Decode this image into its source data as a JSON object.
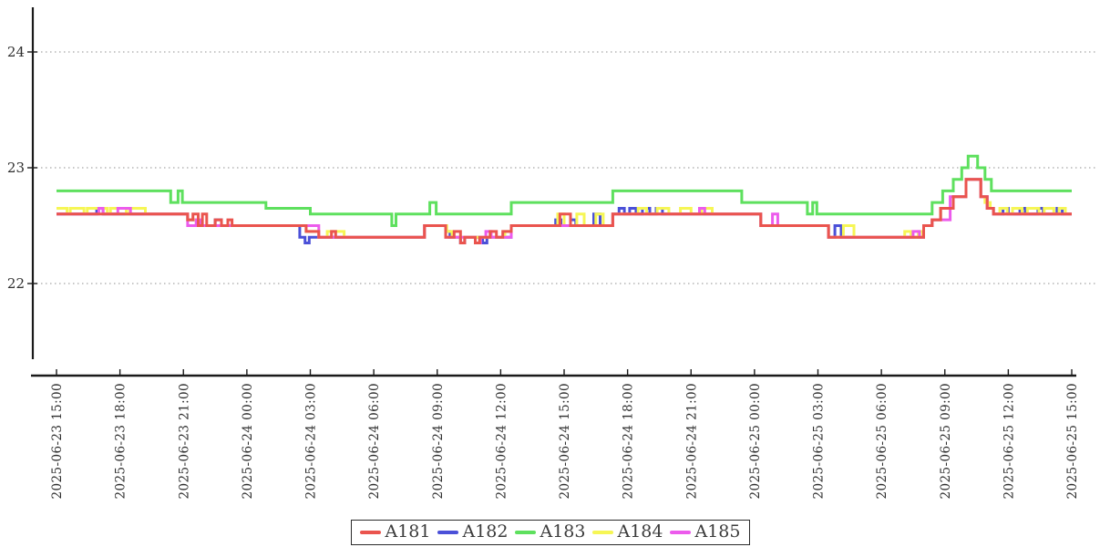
{
  "chart_data": {
    "type": "line",
    "title": "",
    "line_style": "step-after",
    "grid": "horizontal dashed at y ticks",
    "legend_position": "bottom-center",
    "x_axis": {
      "type": "datetime",
      "start": "2025-06-23 15:00",
      "end": "2025-06-25 15:00",
      "tick_interval_hours": 3,
      "tick_labels": [
        "2025-06-23 15:00",
        "2025-06-23 18:00",
        "2025-06-23 21:00",
        "2025-06-24 00:00",
        "2025-06-24 03:00",
        "2025-06-24 06:00",
        "2025-06-24 09:00",
        "2025-06-24 12:00",
        "2025-06-24 15:00",
        "2025-06-24 18:00",
        "2025-06-24 21:00",
        "2025-06-25 00:00",
        "2025-06-25 03:00",
        "2025-06-25 06:00",
        "2025-06-25 09:00",
        "2025-06-25 12:00",
        "2025-06-25 15:00"
      ]
    },
    "y_axis": {
      "ticks": [
        24,
        23,
        22
      ],
      "visible_range": [
        21.3,
        24.4
      ]
    },
    "colors": {
      "axis": "#1a1a1a",
      "grid": "#8f8f8f",
      "tick_text": "#2e2e2e"
    },
    "series_note": "steps = [hours_since_2025-06-23_15:00, value]; value holds until next step",
    "series": [
      {
        "name": "A181",
        "color": "#ea544e",
        "steps": [
          [
            0,
            22.6
          ],
          [
            6.2,
            22.55
          ],
          [
            6.45,
            22.6
          ],
          [
            6.7,
            22.5
          ],
          [
            6.9,
            22.6
          ],
          [
            7.1,
            22.5
          ],
          [
            7.5,
            22.55
          ],
          [
            7.8,
            22.5
          ],
          [
            8.1,
            22.55
          ],
          [
            8.3,
            22.5
          ],
          [
            11.8,
            22.45
          ],
          [
            12.4,
            22.4
          ],
          [
            13.0,
            22.45
          ],
          [
            13.2,
            22.4
          ],
          [
            17.4,
            22.5
          ],
          [
            18.4,
            22.4
          ],
          [
            18.8,
            22.45
          ],
          [
            19.1,
            22.35
          ],
          [
            19.3,
            22.4
          ],
          [
            19.8,
            22.35
          ],
          [
            20.0,
            22.4
          ],
          [
            20.5,
            22.45
          ],
          [
            20.8,
            22.4
          ],
          [
            21.1,
            22.45
          ],
          [
            21.5,
            22.5
          ],
          [
            23.8,
            22.6
          ],
          [
            24.3,
            22.5
          ],
          [
            26.3,
            22.6
          ],
          [
            33.3,
            22.5
          ],
          [
            36.5,
            22.4
          ],
          [
            41.0,
            22.5
          ],
          [
            41.4,
            22.55
          ],
          [
            41.8,
            22.65
          ],
          [
            42.4,
            22.75
          ],
          [
            43.0,
            22.9
          ],
          [
            43.7,
            22.75
          ],
          [
            44.0,
            22.65
          ],
          [
            44.3,
            22.6
          ],
          [
            48,
            22.6
          ]
        ]
      },
      {
        "name": "A182",
        "color": "#4b50d8",
        "steps": [
          [
            0,
            22.6
          ],
          [
            1.9,
            22.65
          ],
          [
            2.2,
            22.6
          ],
          [
            6.2,
            22.55
          ],
          [
            6.7,
            22.5
          ],
          [
            7.5,
            22.55
          ],
          [
            7.8,
            22.5
          ],
          [
            11.5,
            22.4
          ],
          [
            11.75,
            22.35
          ],
          [
            11.95,
            22.4
          ],
          [
            17.4,
            22.5
          ],
          [
            18.4,
            22.45
          ],
          [
            18.6,
            22.4
          ],
          [
            19.1,
            22.35
          ],
          [
            19.3,
            22.4
          ],
          [
            20.15,
            22.35
          ],
          [
            20.35,
            22.4
          ],
          [
            21.5,
            22.5
          ],
          [
            23.6,
            22.55
          ],
          [
            23.85,
            22.5
          ],
          [
            24.3,
            22.55
          ],
          [
            24.55,
            22.5
          ],
          [
            25.4,
            22.6
          ],
          [
            25.7,
            22.5
          ],
          [
            26.3,
            22.6
          ],
          [
            26.6,
            22.65
          ],
          [
            26.85,
            22.6
          ],
          [
            27.1,
            22.65
          ],
          [
            27.4,
            22.6
          ],
          [
            27.7,
            22.65
          ],
          [
            28.05,
            22.6
          ],
          [
            28.35,
            22.65
          ],
          [
            28.65,
            22.6
          ],
          [
            33.3,
            22.5
          ],
          [
            36.5,
            22.4
          ],
          [
            36.8,
            22.5
          ],
          [
            37.1,
            22.4
          ],
          [
            41.0,
            22.5
          ],
          [
            41.4,
            22.55
          ],
          [
            41.8,
            22.65
          ],
          [
            42.4,
            22.75
          ],
          [
            43.0,
            22.9
          ],
          [
            43.7,
            22.75
          ],
          [
            44.0,
            22.65
          ],
          [
            44.3,
            22.6
          ],
          [
            44.75,
            22.65
          ],
          [
            45.0,
            22.6
          ],
          [
            45.55,
            22.65
          ],
          [
            45.8,
            22.6
          ],
          [
            46.4,
            22.65
          ],
          [
            46.65,
            22.6
          ],
          [
            47.3,
            22.65
          ],
          [
            47.55,
            22.6
          ],
          [
            48,
            22.6
          ]
        ]
      },
      {
        "name": "A183",
        "color": "#5ee05e",
        "steps": [
          [
            0,
            22.8
          ],
          [
            5.4,
            22.7
          ],
          [
            5.75,
            22.8
          ],
          [
            5.95,
            22.7
          ],
          [
            9.9,
            22.65
          ],
          [
            12.0,
            22.6
          ],
          [
            15.85,
            22.5
          ],
          [
            16.05,
            22.6
          ],
          [
            17.65,
            22.7
          ],
          [
            17.95,
            22.6
          ],
          [
            21.5,
            22.7
          ],
          [
            26.3,
            22.8
          ],
          [
            32.4,
            22.7
          ],
          [
            35.5,
            22.6
          ],
          [
            35.75,
            22.7
          ],
          [
            35.95,
            22.6
          ],
          [
            41.4,
            22.7
          ],
          [
            41.9,
            22.8
          ],
          [
            42.4,
            22.9
          ],
          [
            42.8,
            23.0
          ],
          [
            43.1,
            23.1
          ],
          [
            43.55,
            23.0
          ],
          [
            43.9,
            22.9
          ],
          [
            44.2,
            22.8
          ],
          [
            48,
            22.8
          ]
        ]
      },
      {
        "name": "A184",
        "color": "#f6f655",
        "steps": [
          [
            0,
            22.65
          ],
          [
            0.5,
            22.6
          ],
          [
            0.65,
            22.65
          ],
          [
            1.3,
            22.6
          ],
          [
            1.45,
            22.65
          ],
          [
            2.4,
            22.6
          ],
          [
            2.55,
            22.65
          ],
          [
            3.3,
            22.6
          ],
          [
            3.45,
            22.65
          ],
          [
            4.2,
            22.6
          ],
          [
            6.2,
            22.55
          ],
          [
            6.7,
            22.5
          ],
          [
            8.3,
            22.5
          ],
          [
            11.8,
            22.45
          ],
          [
            12.4,
            22.4
          ],
          [
            12.8,
            22.45
          ],
          [
            13.6,
            22.4
          ],
          [
            17.4,
            22.5
          ],
          [
            18.45,
            22.45
          ],
          [
            18.7,
            22.4
          ],
          [
            21.2,
            22.45
          ],
          [
            21.5,
            22.5
          ],
          [
            23.7,
            22.6
          ],
          [
            24.0,
            22.5
          ],
          [
            24.6,
            22.6
          ],
          [
            24.95,
            22.5
          ],
          [
            25.5,
            22.6
          ],
          [
            25.85,
            22.5
          ],
          [
            26.3,
            22.6
          ],
          [
            27.5,
            22.65
          ],
          [
            27.9,
            22.6
          ],
          [
            28.4,
            22.65
          ],
          [
            28.95,
            22.6
          ],
          [
            29.5,
            22.65
          ],
          [
            30.0,
            22.6
          ],
          [
            30.5,
            22.65
          ],
          [
            31.0,
            22.6
          ],
          [
            33.3,
            22.5
          ],
          [
            36.5,
            22.4
          ],
          [
            37.2,
            22.5
          ],
          [
            37.7,
            22.4
          ],
          [
            40.1,
            22.45
          ],
          [
            40.4,
            22.4
          ],
          [
            40.75,
            22.45
          ],
          [
            40.95,
            22.4
          ],
          [
            41.0,
            22.5
          ],
          [
            41.4,
            22.55
          ],
          [
            41.8,
            22.65
          ],
          [
            42.4,
            22.75
          ],
          [
            43.0,
            22.9
          ],
          [
            43.7,
            22.75
          ],
          [
            43.9,
            22.7
          ],
          [
            44.15,
            22.65
          ],
          [
            44.3,
            22.6
          ],
          [
            44.6,
            22.65
          ],
          [
            44.95,
            22.6
          ],
          [
            45.2,
            22.65
          ],
          [
            45.65,
            22.6
          ],
          [
            45.9,
            22.65
          ],
          [
            46.45,
            22.6
          ],
          [
            46.7,
            22.65
          ],
          [
            47.15,
            22.6
          ],
          [
            47.4,
            22.65
          ],
          [
            47.7,
            22.6
          ],
          [
            48,
            22.6
          ]
        ]
      },
      {
        "name": "A185",
        "color": "#ec5bec",
        "steps": [
          [
            0,
            22.6
          ],
          [
            2.0,
            22.65
          ],
          [
            2.2,
            22.6
          ],
          [
            2.9,
            22.65
          ],
          [
            3.5,
            22.6
          ],
          [
            6.2,
            22.5
          ],
          [
            6.6,
            22.55
          ],
          [
            6.8,
            22.5
          ],
          [
            12.4,
            22.4
          ],
          [
            17.4,
            22.5
          ],
          [
            18.4,
            22.4
          ],
          [
            19.8,
            22.35
          ],
          [
            20.05,
            22.4
          ],
          [
            20.3,
            22.45
          ],
          [
            20.55,
            22.4
          ],
          [
            21.5,
            22.5
          ],
          [
            26.3,
            22.6
          ],
          [
            30.4,
            22.65
          ],
          [
            30.65,
            22.6
          ],
          [
            33.3,
            22.5
          ],
          [
            33.85,
            22.6
          ],
          [
            34.1,
            22.5
          ],
          [
            36.5,
            22.4
          ],
          [
            40.5,
            22.45
          ],
          [
            40.8,
            22.4
          ],
          [
            41.0,
            22.5
          ],
          [
            41.4,
            22.55
          ],
          [
            42.25,
            22.75
          ],
          [
            43.0,
            22.9
          ],
          [
            43.7,
            22.75
          ],
          [
            44.0,
            22.65
          ],
          [
            44.3,
            22.6
          ],
          [
            48,
            22.6
          ]
        ]
      }
    ],
    "legend": {
      "entries": [
        "A181",
        "A182",
        "A183",
        "A184",
        "A185"
      ]
    }
  }
}
